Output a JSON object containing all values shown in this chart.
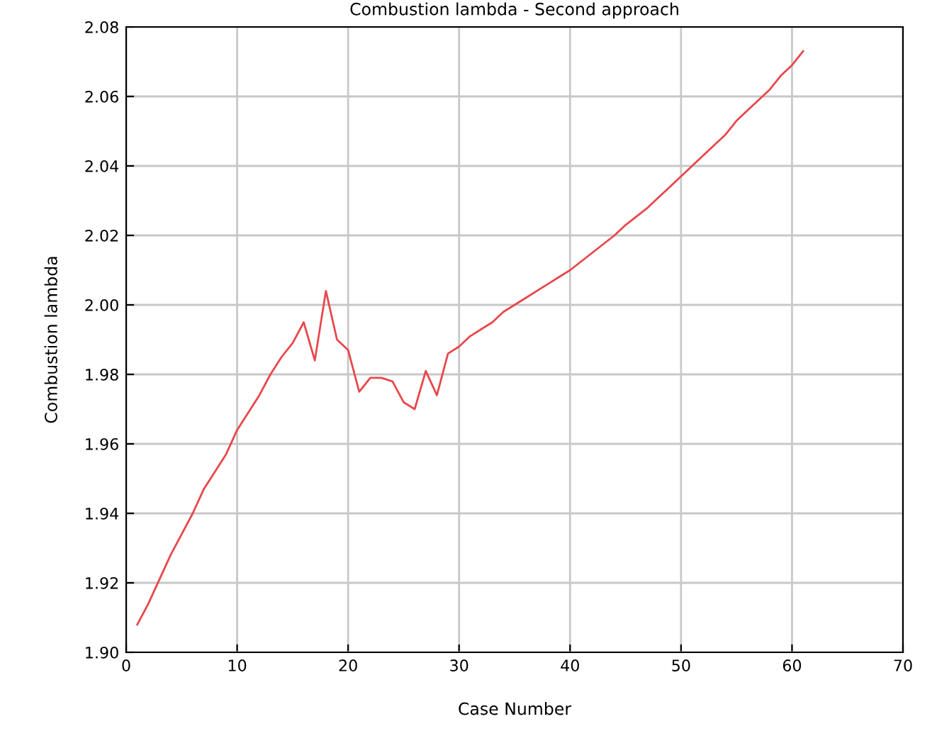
{
  "chart_data": {
    "type": "line",
    "title": "Combustion lambda - Second approach",
    "xlabel": "Case Number",
    "ylabel": "Combustion lambda",
    "x": [
      1,
      2,
      3,
      4,
      5,
      6,
      7,
      8,
      9,
      10,
      11,
      12,
      13,
      14,
      15,
      16,
      17,
      18,
      19,
      20,
      21,
      22,
      23,
      24,
      25,
      26,
      27,
      28,
      29,
      30,
      31,
      32,
      33,
      34,
      35,
      36,
      37,
      38,
      39,
      40,
      41,
      42,
      43,
      44,
      45,
      46,
      47,
      48,
      49,
      50,
      51,
      52,
      53,
      54,
      55,
      56,
      57,
      58,
      59,
      60,
      61
    ],
    "series": [
      {
        "color": "#e8474c",
        "values": [
          1.908,
          1.914,
          1.921,
          1.928,
          1.934,
          1.94,
          1.947,
          1.952,
          1.957,
          1.964,
          1.969,
          1.974,
          1.98,
          1.985,
          1.989,
          1.995,
          1.984,
          2.004,
          1.99,
          1.987,
          1.975,
          1.979,
          1.979,
          1.978,
          1.972,
          1.97,
          1.981,
          1.974,
          1.986,
          1.988,
          1.991,
          1.993,
          1.995,
          1.998,
          2.0,
          2.002,
          2.004,
          2.006,
          2.008,
          2.01,
          2.0125,
          2.015,
          2.0175,
          2.02,
          2.023,
          2.0255,
          2.028,
          2.031,
          2.034,
          2.037,
          2.04,
          2.043,
          2.046,
          2.049,
          2.053,
          2.056,
          2.059,
          2.062,
          2.066,
          2.069,
          2.073
        ]
      }
    ],
    "xlim": [
      0,
      70
    ],
    "xticks": [
      0,
      10,
      20,
      30,
      40,
      50,
      60,
      70
    ],
    "ylim": [
      1.9,
      2.08
    ],
    "yticks": [
      {
        "value": 1.9,
        "label": "1.90"
      },
      {
        "value": 1.92,
        "label": "1.92"
      },
      {
        "value": 1.94,
        "label": "1.94"
      },
      {
        "value": 1.96,
        "label": "1.96"
      },
      {
        "value": 1.98,
        "label": "1.98"
      },
      {
        "value": 2.0,
        "label": "2.00"
      },
      {
        "value": 2.02,
        "label": "2.02"
      },
      {
        "value": 2.04,
        "label": "2.04"
      },
      {
        "value": 2.06,
        "label": "2.06"
      },
      {
        "value": 2.08,
        "label": "2.08"
      }
    ],
    "grid": true,
    "marker": "none",
    "line_style": "solid"
  }
}
